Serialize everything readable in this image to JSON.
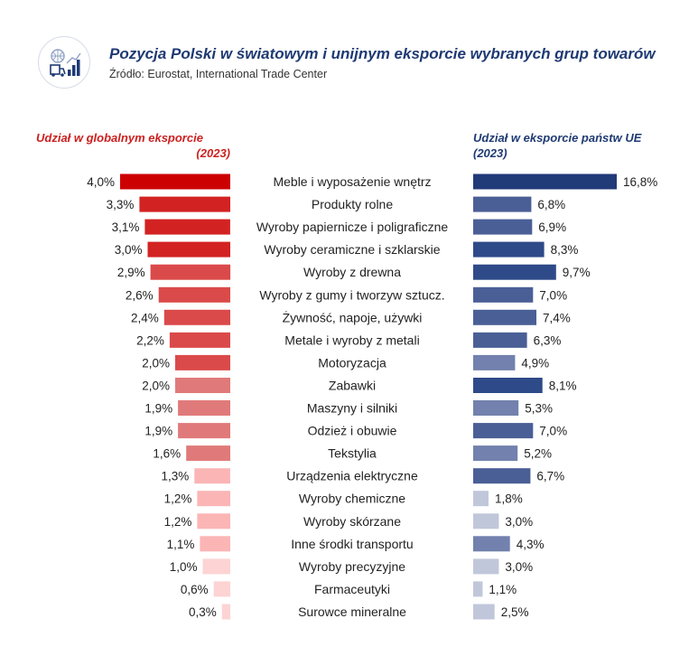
{
  "header": {
    "title": "Pozycja Polski w światowym i unijnym eksporcie wybranych grup towarów",
    "source": "Źródło: Eurostat, International Trade Center",
    "logo_icon": "export-chart-icon"
  },
  "left_panel": {
    "title_line1": "Udział w globalnym eksporcie",
    "title_line2": "(2023)"
  },
  "right_panel": {
    "title_line1": "Udział w eksporcie państw UE",
    "title_line2": "(2023)"
  },
  "colors": {
    "title": "#1f3a73",
    "left_title": "#cc1f1f",
    "red_scale": [
      "#cc0000",
      "#d32222",
      "#db4a4a",
      "#e07a7a",
      "#fbb5b5",
      "#fdd3d3"
    ],
    "blue_scale": [
      "#213a78",
      "#2e4a88",
      "#4a5f96",
      "#7281ad",
      "#c0c7da"
    ]
  },
  "chart_data": {
    "type": "bar",
    "title": "Pozycja Polski w światowym i unijnym eksporcie wybranych grup towarów",
    "categories": [
      "Meble i wyposażenie wnętrz",
      "Produkty rolne",
      "Wyroby papiernicze i poligraficzne",
      "Wyroby ceramiczne i szklarskie",
      "Wyroby z drewna",
      "Wyroby z gumy i tworzyw sztucz.",
      "Żywność, napoje, używki",
      "Metale i wyroby z metali",
      "Motoryzacja",
      "Zabawki",
      "Maszyny i silniki",
      "Odzież i obuwie",
      "Tekstylia",
      "Urządzenia elektryczne",
      "Wyroby chemiczne",
      "Wyroby skórzane",
      "Inne środki transportu",
      "Wyroby precyzyjne",
      "Farmaceutyki",
      "Surowce mineralne"
    ],
    "series": [
      {
        "name": "Udział w globalnym eksporcie (2023)",
        "direction": "left",
        "values": [
          4.0,
          3.3,
          3.1,
          3.0,
          2.9,
          2.6,
          2.4,
          2.2,
          2.0,
          2.0,
          1.9,
          1.9,
          1.6,
          1.3,
          1.2,
          1.2,
          1.1,
          1.0,
          0.6,
          0.3
        ],
        "labels": [
          "4,0%",
          "3,3%",
          "3,1%",
          "3,0%",
          "2,9%",
          "2,6%",
          "2,4%",
          "2,2%",
          "2,0%",
          "2,0%",
          "1,9%",
          "1,9%",
          "1,6%",
          "1,3%",
          "1,2%",
          "1,2%",
          "1,1%",
          "1,0%",
          "0,6%",
          "0,3%"
        ],
        "color_index": [
          0,
          1,
          1,
          1,
          2,
          2,
          2,
          2,
          2,
          3,
          3,
          3,
          3,
          4,
          4,
          4,
          4,
          5,
          5,
          5
        ],
        "xlim": [
          0,
          4.0
        ]
      },
      {
        "name": "Udział w eksporcie państw UE (2023)",
        "direction": "right",
        "values": [
          16.8,
          6.8,
          6.9,
          8.3,
          9.7,
          7.0,
          7.4,
          6.3,
          4.9,
          8.1,
          5.3,
          7.0,
          5.2,
          6.7,
          1.8,
          3.0,
          4.3,
          3.0,
          1.1,
          2.5
        ],
        "labels": [
          "16,8%",
          "6,8%",
          "6,9%",
          "8,3%",
          "9,7%",
          "7,0%",
          "7,4%",
          "6,3%",
          "4,9%",
          "8,1%",
          "5,3%",
          "7,0%",
          "5,2%",
          "6,7%",
          "1,8%",
          "3,0%",
          "4,3%",
          "3,0%",
          "1,1%",
          "2,5%"
        ],
        "color_index": [
          0,
          2,
          2,
          1,
          1,
          2,
          2,
          2,
          3,
          1,
          3,
          2,
          3,
          2,
          4,
          4,
          3,
          4,
          4,
          4
        ],
        "xlim": [
          0,
          16.8
        ]
      }
    ]
  }
}
